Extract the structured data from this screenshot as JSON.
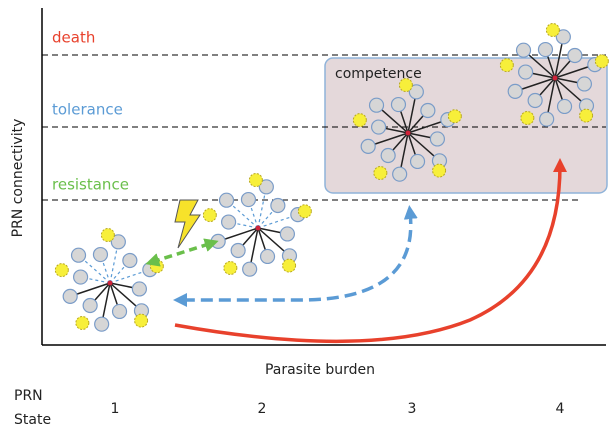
{
  "y_axis_label": "PRN connectivity",
  "x_axis_label": "Parasite burden",
  "thresholds": [
    {
      "label": "death"
    },
    {
      "label": "tolerance"
    },
    {
      "label": "resistance"
    }
  ],
  "competence_label": "competence",
  "state_header": [
    "PRN",
    "State"
  ],
  "states": [
    "1",
    "2",
    "3",
    "4"
  ]
}
